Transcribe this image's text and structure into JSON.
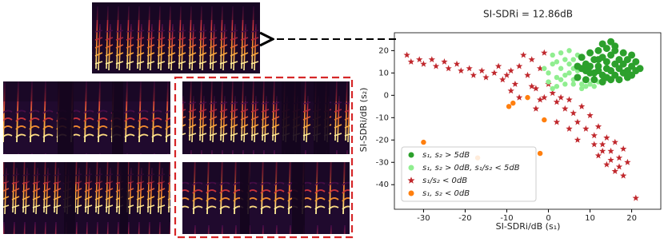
{
  "chart_data": {
    "type": "scatter",
    "title": "SI-SDRi = 12.86dB",
    "x_label": "SI-SDRi/dB  (s₁)",
    "y_label": "SI-SDRi/dB  (s₂)",
    "xlim": [
      -37,
      27
    ],
    "ylim": [
      -51,
      28
    ],
    "xticks": [
      -30,
      -20,
      -10,
      0,
      10,
      20
    ],
    "yticks": [
      20,
      10,
      0,
      -10,
      -20,
      -30,
      -40
    ],
    "legend_position": "lower left",
    "series": [
      {
        "name": "s₁, s₂ > 5dB",
        "color": "#2ca02c",
        "marker": "circle",
        "x": [
          8,
          9,
          10,
          11,
          12,
          13,
          14,
          15,
          16,
          17,
          18,
          19,
          20,
          21,
          7,
          9,
          11,
          13,
          15,
          17,
          19,
          10,
          12,
          14,
          16,
          18,
          15,
          13,
          20,
          22,
          8,
          10,
          12,
          14,
          16,
          18,
          11,
          13,
          15,
          17,
          19,
          21,
          9,
          7,
          16,
          12,
          14,
          20
        ],
        "y": [
          12,
          14,
          10,
          16,
          13,
          9,
          15,
          11,
          14,
          12,
          10,
          16,
          13,
          11,
          8,
          7,
          7,
          6,
          7,
          7,
          8,
          19,
          20,
          21,
          20,
          19,
          24,
          23,
          18,
          12,
          17,
          13,
          11,
          12,
          9,
          14,
          10,
          17,
          18,
          16,
          11,
          15,
          11,
          13,
          22,
          16,
          8,
          9
        ]
      },
      {
        "name": "s₁, s₂ > 0dB, s₁/s₂ < 5dB",
        "color": "#90ee90",
        "marker": "circle",
        "x": [
          0,
          1,
          2,
          3,
          4,
          5,
          6,
          2,
          4,
          6,
          8,
          10,
          12,
          1,
          3,
          5,
          7,
          3,
          5,
          0,
          7,
          6,
          9,
          11,
          -1,
          2,
          4,
          6,
          8,
          1
        ],
        "y": [
          10,
          14,
          8,
          12,
          16,
          10,
          7,
          4,
          5,
          5,
          5,
          5,
          6,
          18,
          19,
          20,
          18,
          7,
          14,
          6,
          11,
          16,
          4,
          4,
          12,
          15,
          9,
          12,
          3,
          3
        ]
      },
      {
        "name": "s₁/s₂ < 0dB",
        "color": "#c0282d",
        "marker": "star",
        "x": [
          -34,
          -33,
          -31,
          -30,
          -28,
          -27,
          -25,
          -24,
          -22,
          -21,
          -19,
          -18,
          -16,
          -15,
          -13,
          -12,
          -11,
          -10,
          -9,
          -8,
          -7,
          -6,
          -5,
          -4,
          -3,
          -2,
          -1,
          -4,
          -2,
          0,
          1,
          2,
          3,
          4,
          5,
          6,
          7,
          8,
          9,
          10,
          11,
          12,
          13,
          14,
          15,
          16,
          17,
          18,
          12,
          14,
          16,
          18,
          17,
          13,
          15,
          11,
          19,
          21,
          5,
          7,
          2,
          -7,
          -9,
          -3,
          -1
        ],
        "y": [
          18,
          15,
          16,
          14,
          16,
          13,
          15,
          12,
          14,
          11,
          12,
          9,
          11,
          8,
          10,
          13,
          7,
          9,
          11,
          5,
          13,
          18,
          9,
          16,
          3,
          12,
          19,
          4,
          -2,
          5,
          1,
          -3,
          -1,
          -6,
          -2,
          -8,
          -12,
          -5,
          -15,
          -9,
          -18,
          -14,
          -22,
          -19,
          -25,
          -21,
          -28,
          -24,
          -27,
          -31,
          -34,
          -36,
          -32,
          -25,
          -29,
          -22,
          -30,
          -46,
          -15,
          -20,
          -12,
          -1,
          2,
          -6,
          -1
        ]
      },
      {
        "name": "s₁, s₂ < 0dB",
        "color": "#ff7f0e",
        "marker": "circle",
        "x": [
          -30,
          -17,
          -9.5,
          -8.5,
          -5,
          -1,
          -2
        ],
        "y": [
          -21,
          -28,
          -5,
          -3.5,
          -1,
          -11,
          -26
        ]
      }
    ]
  }
}
